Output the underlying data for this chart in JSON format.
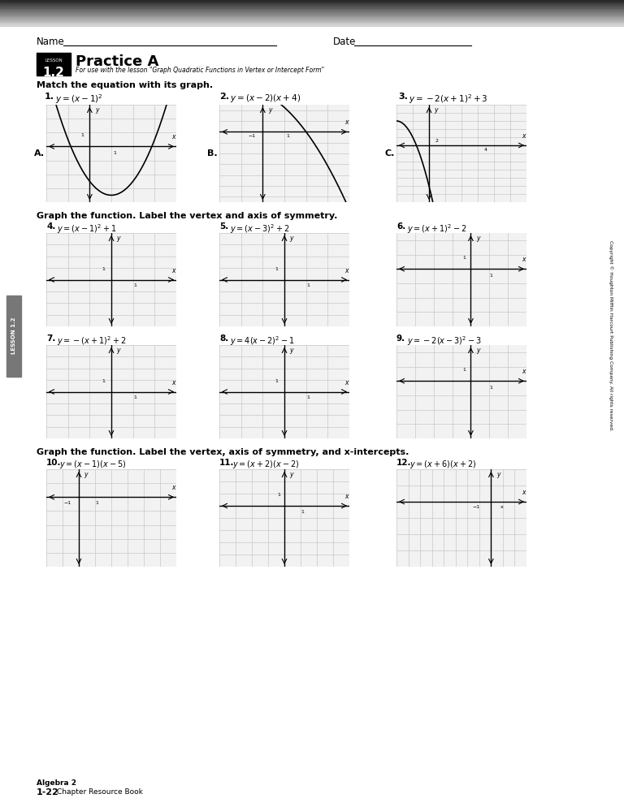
{
  "title": "Practice A",
  "lesson_num": "1.2",
  "subtitle": "For use with the lesson \"Graph Quadratic Functions in Vertex or Intercept Form\"",
  "section1_title": "Match the equation with its graph.",
  "section2_title": "Graph the function. Label the vertex and axis of symmetry.",
  "section3_title": "Graph the function. Label the vertex, axis of symmetry, and x-intercepts.",
  "problems_s1_nums": [
    "1.",
    "2.",
    "3."
  ],
  "problems_s1_eqs": [
    "$y = (x - 1)^2$",
    "$y = (x - 2)(x + 4)$",
    "$y = -2(x + 1)^2 + 3$"
  ],
  "problems_s2_nums": [
    "4.",
    "5.",
    "6.",
    "7.",
    "8.",
    "9."
  ],
  "problems_s2_eqs": [
    "$y = (x - 1)^2 + 1$",
    "$y = (x - 3)^2 + 2$",
    "$y = (x + 1)^2 - 2$",
    "$y = -(x + 1)^2 + 2$",
    "$y = 4(x - 2)^2 - 1$",
    "$y = -2(x - 3)^2 - 3$"
  ],
  "problems_s3_nums": [
    "10.",
    "11.",
    "12."
  ],
  "problems_s3_eqs": [
    "$y = (x - 1)(x - 5)$",
    "$y = (x + 2)(x - 2)$",
    "$y = (x + 6)(x + 2)$"
  ],
  "footer_book": "Algebra 2",
  "footer_page": "1-22",
  "footer_sub": "Chapter Resource Book",
  "copyright": "Copyright © Houghton Mifflin Harcourt Publishing Company. All rights reserved.",
  "bg_color": "#ffffff",
  "grid_color": "#c8c8c8",
  "axis_color": "#000000"
}
